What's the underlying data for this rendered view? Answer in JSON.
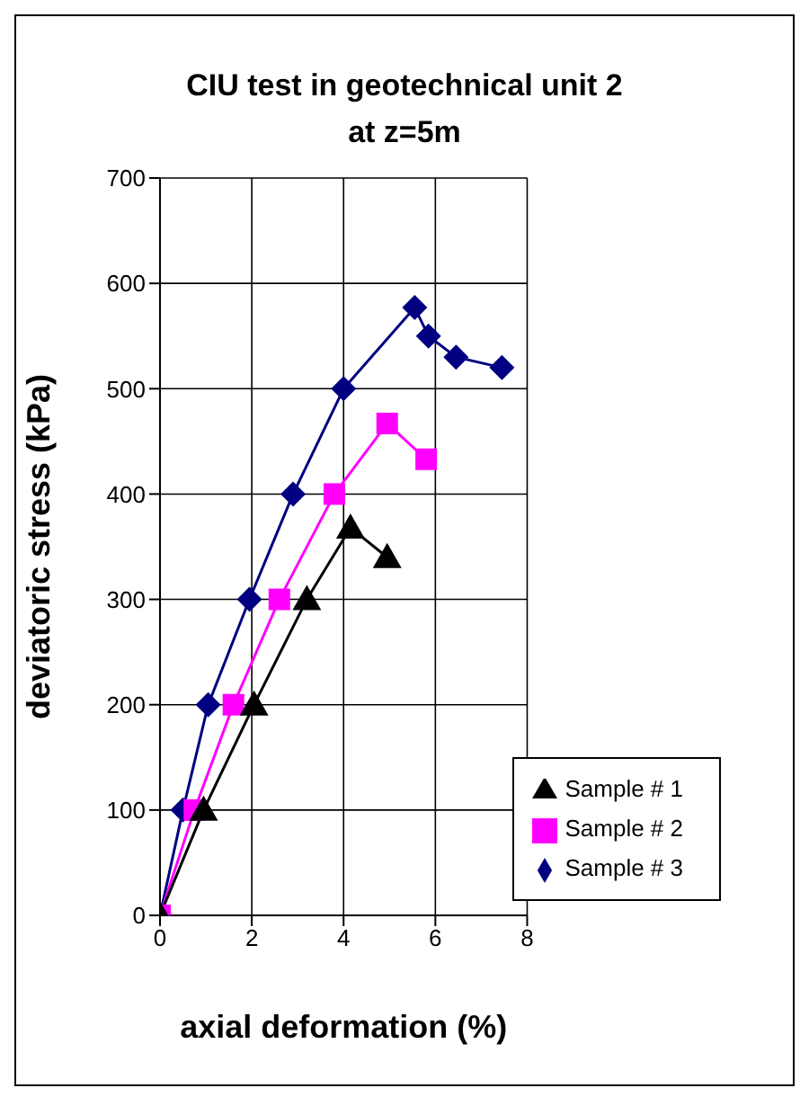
{
  "chart_data": {
    "type": "line",
    "title": "CIU test in geotechnical unit 2\nat z=5m",
    "xlabel": "axial deformation (%)",
    "ylabel": "deviatoric stress (kPa)",
    "xlim": [
      0,
      8
    ],
    "xticks": [
      0,
      2,
      4,
      6,
      8
    ],
    "ylim": [
      0,
      700
    ],
    "yticks": [
      0,
      100,
      200,
      300,
      400,
      500,
      600,
      700
    ],
    "grid": true,
    "legend": "bottom right",
    "line_style": "solid",
    "series": [
      {
        "name": "Sample # 3",
        "color": "#000080",
        "marker": "diamond",
        "x": [
          0,
          0.5,
          1.05,
          1.95,
          2.9,
          4.0,
          5.55,
          5.85,
          6.45,
          7.45
        ],
        "values": [
          0,
          100,
          200,
          300,
          400,
          500,
          577,
          550,
          530,
          520
        ]
      },
      {
        "name": "Sample # 2",
        "color": "#ff00ff",
        "marker": "square",
        "x": [
          0,
          0.75,
          1.6,
          2.6,
          3.8,
          4.95,
          5.8
        ],
        "values": [
          0,
          100,
          200,
          300,
          400,
          467,
          433
        ]
      },
      {
        "name": "Sample # 1",
        "color": "#000000",
        "marker": "triangle",
        "x": [
          0,
          0.95,
          2.05,
          3.2,
          4.15,
          4.95
        ],
        "values": [
          0,
          100,
          200,
          300,
          368,
          340
        ]
      }
    ]
  }
}
